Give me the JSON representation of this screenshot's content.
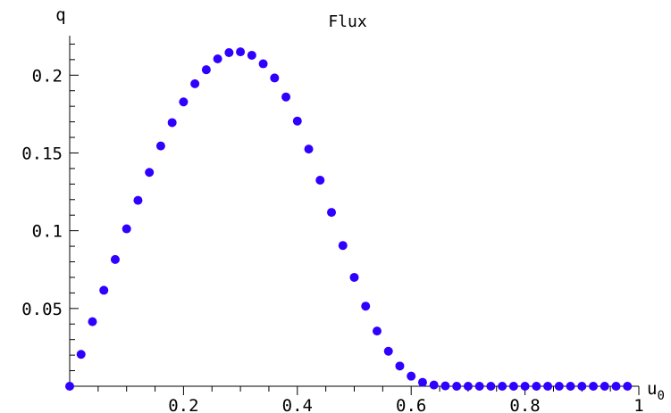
{
  "chart_data": {
    "type": "scatter",
    "title": "Flux",
    "xlabel": "u",
    "xlabel_sub": "0",
    "ylabel": "q",
    "xlim": [
      0,
      1
    ],
    "ylim": [
      0,
      0.2254
    ],
    "xticks": [
      0.2,
      0.4,
      0.6,
      0.8,
      1.0
    ],
    "xtick_labels": [
      "0.2",
      "0.4",
      "0.6",
      "0.8",
      "1"
    ],
    "yticks": [
      0.05,
      0.1,
      0.15,
      0.2
    ],
    "ytick_labels": [
      "0.05",
      "0.1",
      "0.15",
      "0.2"
    ],
    "grid": false,
    "marker_color": "#3000ff",
    "series": [
      {
        "x": [
          0.0,
          0.02,
          0.04,
          0.06,
          0.08,
          0.1,
          0.12,
          0.14,
          0.16,
          0.18,
          0.2,
          0.22,
          0.24,
          0.26,
          0.28,
          0.3,
          0.32,
          0.34,
          0.36,
          0.38,
          0.4,
          0.42,
          0.44,
          0.46,
          0.48,
          0.5,
          0.52,
          0.54,
          0.56,
          0.58,
          0.6,
          0.62,
          0.64,
          0.66,
          0.68,
          0.7,
          0.72,
          0.74,
          0.76,
          0.78,
          0.8,
          0.82,
          0.84,
          0.86,
          0.88,
          0.9,
          0.92,
          0.94,
          0.96,
          0.98
        ],
        "y": [
          0.0,
          0.0205,
          0.0415,
          0.0617,
          0.0815,
          0.1012,
          0.1195,
          0.1375,
          0.1545,
          0.1695,
          0.1828,
          0.1945,
          0.2035,
          0.2105,
          0.2145,
          0.215,
          0.2128,
          0.2073,
          0.1982,
          0.186,
          0.1705,
          0.1525,
          0.1325,
          0.1118,
          0.0905,
          0.07,
          0.0515,
          0.0355,
          0.0225,
          0.013,
          0.0065,
          0.0025,
          0.0008,
          0.0002,
          0.0,
          0.0,
          0.0,
          0.0,
          0.0,
          0.0,
          0.0,
          0.0,
          0.0,
          0.0,
          0.0,
          0.0,
          0.0,
          0.0,
          0.0,
          0.0
        ]
      }
    ]
  }
}
